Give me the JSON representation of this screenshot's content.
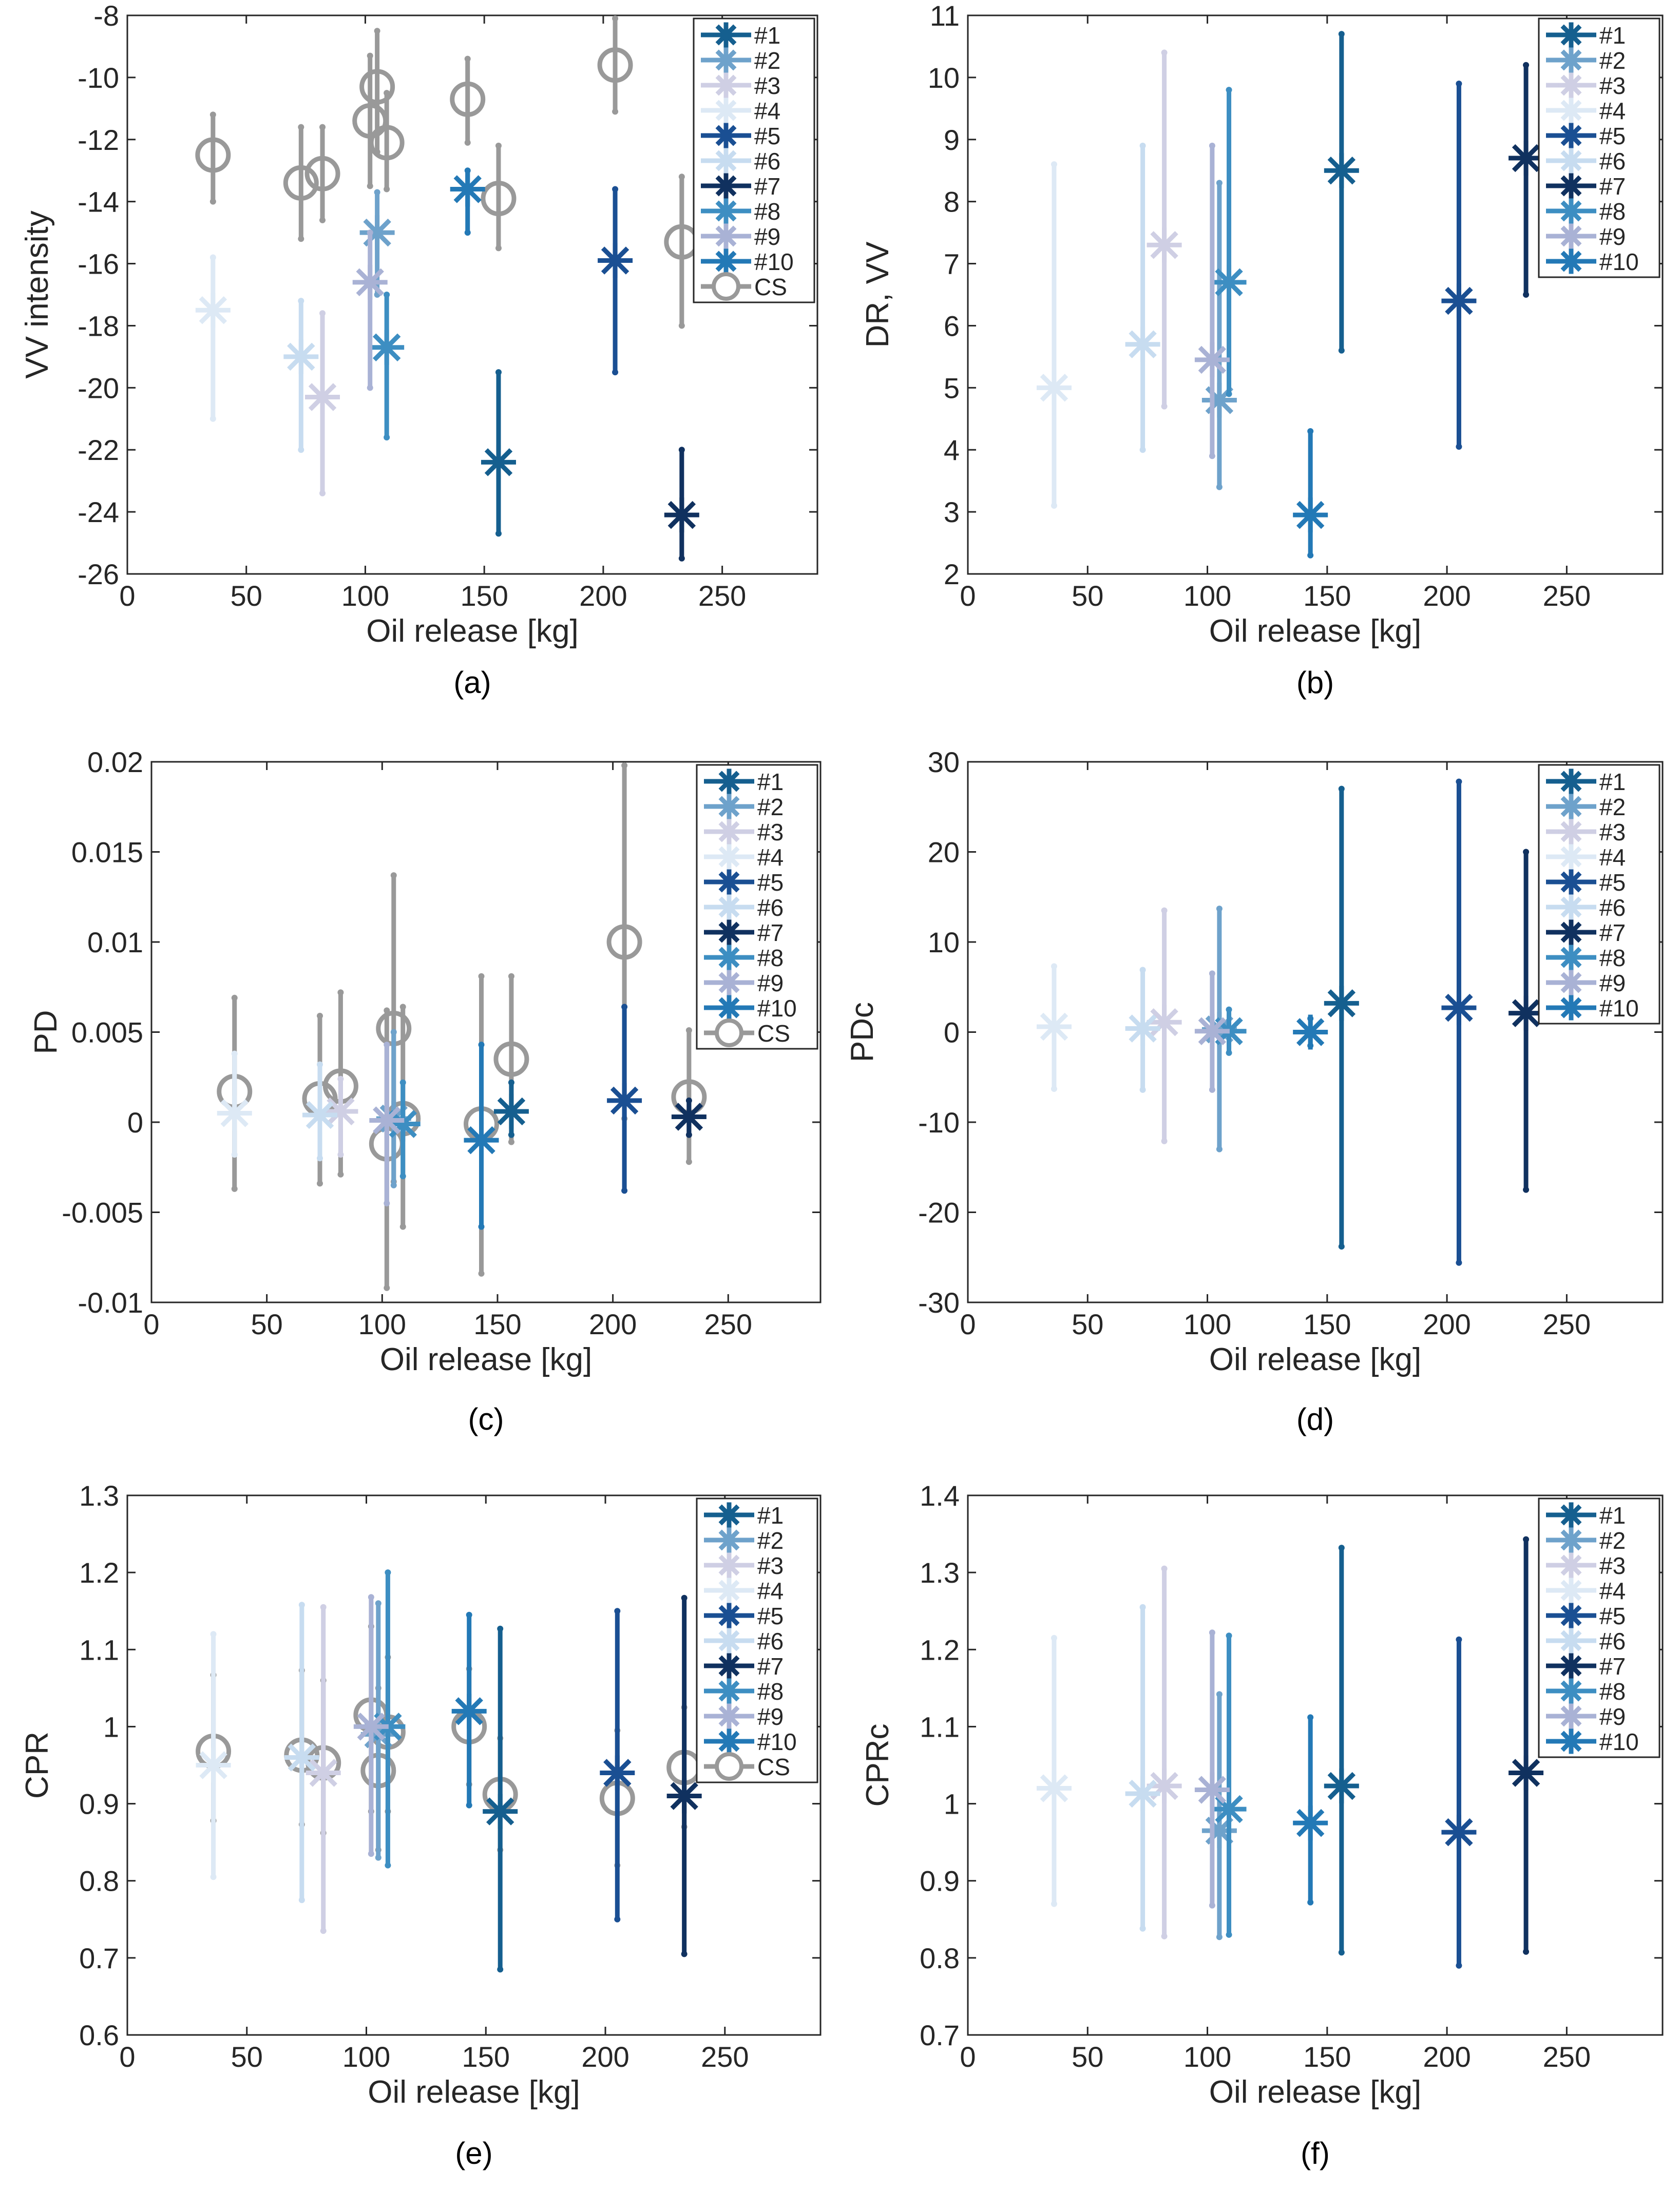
{
  "figure": {
    "colors": {
      "#1": "#155f8f",
      "#2": "#6ea2cb",
      "#3": "#cfcfe4",
      "#4": "#dde9f5",
      "#5": "#1a4f93",
      "#6": "#c7dcf0",
      "#7": "#10315f",
      "#8": "#3d8ec2",
      "#9": "#a9b2d5",
      "#10": "#2379b6",
      "CS": "#999999"
    }
  },
  "chart_data": [
    {
      "panel": "a",
      "caption": "(a)",
      "type": "errorbar-scatter",
      "title": "",
      "xlabel": "Oil release [kg]",
      "ylabel": "VV intensity",
      "xlim": [
        0,
        290
      ],
      "xticks": [
        0,
        50,
        100,
        150,
        200,
        250
      ],
      "ylim": [
        -26,
        -8
      ],
      "yticks": [
        -26,
        -24,
        -22,
        -20,
        -18,
        -16,
        -14,
        -12,
        -10,
        -8
      ],
      "ytick_labels": [
        "-26",
        "-24",
        "-22",
        "-20",
        "-18",
        "-16",
        "-14",
        "-12",
        "-10",
        "-8"
      ],
      "legend": [
        "#1",
        "#2",
        "#3",
        "#4",
        "#5",
        "#6",
        "#7",
        "#8",
        "#9",
        "#10",
        "CS"
      ],
      "series": [
        {
          "name": "#1",
          "x": 156,
          "y": -22.4,
          "lo": -24.7,
          "hi": -19.5
        },
        {
          "name": "#2",
          "x": 105,
          "y": -15.0,
          "lo": -17.0,
          "hi": -13.7
        },
        {
          "name": "#3",
          "x": 82,
          "y": -20.3,
          "lo": -23.4,
          "hi": -17.6
        },
        {
          "name": "#4",
          "x": 36,
          "y": -17.5,
          "lo": -21.0,
          "hi": -15.8
        },
        {
          "name": "#5",
          "x": 205,
          "y": -15.9,
          "lo": -19.5,
          "hi": -13.6
        },
        {
          "name": "#6",
          "x": 73,
          "y": -19.0,
          "lo": -22.0,
          "hi": -17.2
        },
        {
          "name": "#7",
          "x": 233,
          "y": -24.1,
          "lo": -25.5,
          "hi": -22.0
        },
        {
          "name": "#8",
          "x": 109,
          "y": -18.7,
          "lo": -21.6,
          "hi": -17.0
        },
        {
          "name": "#9",
          "x": 102,
          "y": -16.6,
          "lo": -20.0,
          "hi": -15.0
        },
        {
          "name": "#10",
          "x": 143,
          "y": -13.6,
          "lo": -15.0,
          "hi": -13.0
        },
        {
          "name": "CS",
          "points": [
            {
              "x": 36,
              "y": -12.5,
              "lo": -14.0,
              "hi": -11.2
            },
            {
              "x": 73,
              "y": -13.4,
              "lo": -15.2,
              "hi": -11.6
            },
            {
              "x": 82,
              "y": -13.1,
              "lo": -14.6,
              "hi": -11.6
            },
            {
              "x": 102,
              "y": -11.4,
              "lo": -13.5,
              "hi": -9.3
            },
            {
              "x": 105,
              "y": -10.3,
              "lo": -12.4,
              "hi": -8.5
            },
            {
              "x": 109,
              "y": -12.1,
              "lo": -13.6,
              "hi": -10.5
            },
            {
              "x": 143,
              "y": -10.7,
              "lo": -12.1,
              "hi": -9.4
            },
            {
              "x": 156,
              "y": -13.9,
              "lo": -15.5,
              "hi": -12.2
            },
            {
              "x": 205,
              "y": -9.6,
              "lo": -11.1,
              "hi": -8.1
            },
            {
              "x": 233,
              "y": -15.3,
              "lo": -18.0,
              "hi": -13.2
            }
          ]
        }
      ]
    },
    {
      "panel": "b",
      "caption": "(b)",
      "type": "errorbar-scatter",
      "title": "",
      "xlabel": "Oil release [kg]",
      "ylabel": "DR, VV",
      "xlim": [
        0,
        290
      ],
      "xticks": [
        0,
        50,
        100,
        150,
        200,
        250
      ],
      "ylim": [
        2,
        11
      ],
      "yticks": [
        2,
        3,
        4,
        5,
        6,
        7,
        8,
        9,
        10,
        11
      ],
      "ytick_labels": [
        "2",
        "3",
        "4",
        "5",
        "6",
        "7",
        "8",
        "9",
        "10",
        "11"
      ],
      "legend": [
        "#1",
        "#2",
        "#3",
        "#4",
        "#5",
        "#6",
        "#7",
        "#8",
        "#9",
        "#10"
      ],
      "series": [
        {
          "name": "#1",
          "x": 156,
          "y": 8.5,
          "lo": 5.6,
          "hi": 10.7
        },
        {
          "name": "#2",
          "x": 105,
          "y": 4.8,
          "lo": 3.4,
          "hi": 8.3
        },
        {
          "name": "#3",
          "x": 82,
          "y": 7.3,
          "lo": 4.7,
          "hi": 10.4
        },
        {
          "name": "#4",
          "x": 36,
          "y": 5.0,
          "lo": 3.1,
          "hi": 8.6
        },
        {
          "name": "#5",
          "x": 205,
          "y": 6.4,
          "lo": 4.05,
          "hi": 9.9
        },
        {
          "name": "#6",
          "x": 73,
          "y": 5.7,
          "lo": 4.0,
          "hi": 8.9
        },
        {
          "name": "#7",
          "x": 233,
          "y": 8.7,
          "lo": 6.5,
          "hi": 10.2
        },
        {
          "name": "#8",
          "x": 109,
          "y": 6.7,
          "lo": 4.9,
          "hi": 9.8
        },
        {
          "name": "#9",
          "x": 102,
          "y": 5.45,
          "lo": 3.9,
          "hi": 8.9
        },
        {
          "name": "#10",
          "x": 143,
          "y": 2.95,
          "lo": 2.3,
          "hi": 4.3
        }
      ]
    },
    {
      "panel": "c",
      "caption": "(c)",
      "type": "errorbar-scatter",
      "title": "",
      "xlabel": "Oil release [kg]",
      "ylabel": "PD",
      "xlim": [
        0,
        290
      ],
      "xticks": [
        0,
        50,
        100,
        150,
        200,
        250
      ],
      "ylim": [
        -0.01,
        0.02
      ],
      "yticks": [
        -0.01,
        -0.005,
        0,
        0.005,
        0.01,
        0.015,
        0.02
      ],
      "ytick_labels": [
        "-0.01",
        "-0.005",
        "0",
        "0.005",
        "0.01",
        "0.015",
        "0.02"
      ],
      "legend": [
        "#1",
        "#2",
        "#3",
        "#4",
        "#5",
        "#6",
        "#7",
        "#8",
        "#9",
        "#10",
        "CS"
      ],
      "series": [
        {
          "name": "#1",
          "x": 156,
          "y": 0.0006,
          "lo": -0.0007,
          "hi": 0.0022
        },
        {
          "name": "#2",
          "x": 105,
          "y": 0.0002,
          "lo": -0.0035,
          "hi": 0.005
        },
        {
          "name": "#3",
          "x": 82,
          "y": 0.0006,
          "lo": -0.0018,
          "hi": 0.0024
        },
        {
          "name": "#4",
          "x": 36,
          "y": 0.0005,
          "lo": -0.0018,
          "hi": 0.0038
        },
        {
          "name": "#5",
          "x": 205,
          "y": 0.0012,
          "lo": -0.0038,
          "hi": 0.0064
        },
        {
          "name": "#6",
          "x": 73,
          "y": 0.0004,
          "lo": -0.002,
          "hi": 0.0032
        },
        {
          "name": "#7",
          "x": 233,
          "y": 0.0003,
          "lo": -0.0007,
          "hi": 0.0012
        },
        {
          "name": "#8",
          "x": 109,
          "y": -0.0001,
          "lo": -0.003,
          "hi": 0.0022
        },
        {
          "name": "#9",
          "x": 102,
          "y": 0.0001,
          "lo": -0.0045,
          "hi": 0.0043
        },
        {
          "name": "#10",
          "x": 143,
          "y": -0.001,
          "lo": -0.0058,
          "hi": 0.0043
        },
        {
          "name": "CS",
          "points": [
            {
              "x": 36,
              "y": 0.0017,
              "lo": -0.0037,
              "hi": 0.0069
            },
            {
              "x": 73,
              "y": 0.0013,
              "lo": -0.0034,
              "hi": 0.0059
            },
            {
              "x": 82,
              "y": 0.002,
              "lo": -0.0029,
              "hi": 0.0072
            },
            {
              "x": 102,
              "y": -0.0012,
              "lo": -0.0092,
              "hi": 0.0062
            },
            {
              "x": 105,
              "y": 0.0052,
              "lo": -0.0033,
              "hi": 0.0137
            },
            {
              "x": 109,
              "y": 0.0002,
              "lo": -0.0058,
              "hi": 0.0064
            },
            {
              "x": 143,
              "y": -0.0001,
              "lo": -0.0084,
              "hi": 0.0081
            },
            {
              "x": 156,
              "y": 0.0035,
              "lo": -0.0011,
              "hi": 0.0081
            },
            {
              "x": 205,
              "y": 0.01,
              "lo": 0.0002,
              "hi": 0.0198
            },
            {
              "x": 233,
              "y": 0.0014,
              "lo": -0.0022,
              "hi": 0.0051
            }
          ]
        }
      ]
    },
    {
      "panel": "d",
      "caption": "(d)",
      "type": "errorbar-scatter",
      "title": "",
      "xlabel": "Oil release [kg]",
      "ylabel": "PDc",
      "xlim": [
        0,
        290
      ],
      "xticks": [
        0,
        50,
        100,
        150,
        200,
        250
      ],
      "ylim": [
        -30,
        30
      ],
      "yticks": [
        -30,
        -20,
        -10,
        0,
        10,
        20,
        30
      ],
      "ytick_labels": [
        "-30",
        "-20",
        "-10",
        "0",
        "10",
        "20",
        "30"
      ],
      "legend": [
        "#1",
        "#2",
        "#3",
        "#4",
        "#5",
        "#6",
        "#7",
        "#8",
        "#9",
        "#10"
      ],
      "series": [
        {
          "name": "#1",
          "x": 156,
          "y": 3.2,
          "lo": -23.8,
          "hi": 27.0
        },
        {
          "name": "#2",
          "x": 105,
          "y": 0.3,
          "lo": -13.0,
          "hi": 13.7
        },
        {
          "name": "#3",
          "x": 82,
          "y": 1.1,
          "lo": -12.1,
          "hi": 13.5
        },
        {
          "name": "#4",
          "x": 36,
          "y": 0.6,
          "lo": -6.3,
          "hi": 7.3
        },
        {
          "name": "#5",
          "x": 205,
          "y": 2.7,
          "lo": -25.6,
          "hi": 27.8
        },
        {
          "name": "#6",
          "x": 73,
          "y": 0.4,
          "lo": -6.4,
          "hi": 6.9
        },
        {
          "name": "#7",
          "x": 233,
          "y": 2.1,
          "lo": -17.5,
          "hi": 20.0
        },
        {
          "name": "#8",
          "x": 109,
          "y": 0.1,
          "lo": -2.3,
          "hi": 2.5
        },
        {
          "name": "#9",
          "x": 102,
          "y": 0.1,
          "lo": -6.4,
          "hi": 6.5
        },
        {
          "name": "#10",
          "x": 143,
          "y": 0.0,
          "lo": -1.5,
          "hi": 1.5
        }
      ]
    },
    {
      "panel": "e",
      "caption": "(e)",
      "type": "errorbar-scatter",
      "title": "",
      "xlabel": "Oil release [kg]",
      "ylabel": "CPR",
      "xlim": [
        0,
        290
      ],
      "xticks": [
        0,
        50,
        100,
        150,
        200,
        250
      ],
      "ylim": [
        0.6,
        1.3
      ],
      "yticks": [
        0.6,
        0.7,
        0.8,
        0.9,
        1,
        1.1,
        1.2,
        1.3
      ],
      "ytick_labels": [
        "0.6",
        "0.7",
        "0.8",
        "0.9",
        "1",
        "1.1",
        "1.2",
        "1.3"
      ],
      "legend": [
        "#1",
        "#2",
        "#3",
        "#4",
        "#5",
        "#6",
        "#7",
        "#8",
        "#9",
        "#10",
        "CS"
      ],
      "series": [
        {
          "name": "#1",
          "x": 156,
          "y": 0.89,
          "lo": 0.685,
          "hi": 1.127
        },
        {
          "name": "#2",
          "x": 105,
          "y": 0.99,
          "lo": 0.83,
          "hi": 1.16
        },
        {
          "name": "#3",
          "x": 82,
          "y": 0.94,
          "lo": 0.735,
          "hi": 1.155
        },
        {
          "name": "#4",
          "x": 36,
          "y": 0.95,
          "lo": 0.805,
          "hi": 1.12
        },
        {
          "name": "#5",
          "x": 205,
          "y": 0.94,
          "lo": 0.75,
          "hi": 1.15
        },
        {
          "name": "#6",
          "x": 73,
          "y": 0.96,
          "lo": 0.775,
          "hi": 1.158
        },
        {
          "name": "#7",
          "x": 233,
          "y": 0.91,
          "lo": 0.705,
          "hi": 1.167
        },
        {
          "name": "#8",
          "x": 109,
          "y": 1.0,
          "lo": 0.82,
          "hi": 1.2
        },
        {
          "name": "#9",
          "x": 102,
          "y": 1.0,
          "lo": 0.835,
          "hi": 1.168
        },
        {
          "name": "#10",
          "x": 143,
          "y": 1.02,
          "lo": 0.898,
          "hi": 1.145
        },
        {
          "name": "CS",
          "points": [
            {
              "x": 36,
              "y": 0.968,
              "lo": 0.878,
              "hi": 1.067
            },
            {
              "x": 73,
              "y": 0.963,
              "lo": 0.873,
              "hi": 1.073
            },
            {
              "x": 82,
              "y": 0.953,
              "lo": 0.862,
              "hi": 1.06
            },
            {
              "x": 102,
              "y": 1.015,
              "lo": 0.89,
              "hi": 1.13
            },
            {
              "x": 105,
              "y": 0.943,
              "lo": 0.84,
              "hi": 1.05
            },
            {
              "x": 109,
              "y": 0.993,
              "lo": 0.89,
              "hi": 1.09
            },
            {
              "x": 143,
              "y": 1.0,
              "lo": 0.925,
              "hi": 1.075
            },
            {
              "x": 156,
              "y": 0.912,
              "lo": 0.84,
              "hi": 0.985
            },
            {
              "x": 205,
              "y": 0.907,
              "lo": 0.82,
              "hi": 0.995
            },
            {
              "x": 233,
              "y": 0.947,
              "lo": 0.87,
              "hi": 1.025
            }
          ]
        }
      ]
    },
    {
      "panel": "f",
      "caption": "(f)",
      "type": "errorbar-scatter",
      "title": "",
      "xlabel": "Oil release [kg]",
      "ylabel": "CPRc",
      "xlim": [
        0,
        290
      ],
      "xticks": [
        0,
        50,
        100,
        150,
        200,
        250
      ],
      "ylim": [
        0.7,
        1.4
      ],
      "yticks": [
        0.7,
        0.8,
        0.9,
        1,
        1.1,
        1.2,
        1.3,
        1.4
      ],
      "ytick_labels": [
        "0.7",
        "0.8",
        "0.9",
        "1",
        "1.1",
        "1.2",
        "1.3",
        "1.4"
      ],
      "legend": [
        "#1",
        "#2",
        "#3",
        "#4",
        "#5",
        "#6",
        "#7",
        "#8",
        "#9",
        "#10"
      ],
      "series": [
        {
          "name": "#1",
          "x": 156,
          "y": 1.023,
          "lo": 0.807,
          "hi": 1.332
        },
        {
          "name": "#2",
          "x": 105,
          "y": 0.965,
          "lo": 0.827,
          "hi": 1.142
        },
        {
          "name": "#3",
          "x": 82,
          "y": 1.023,
          "lo": 0.828,
          "hi": 1.305
        },
        {
          "name": "#4",
          "x": 36,
          "y": 1.02,
          "lo": 0.87,
          "hi": 1.215
        },
        {
          "name": "#5",
          "x": 205,
          "y": 0.963,
          "lo": 0.79,
          "hi": 1.213
        },
        {
          "name": "#6",
          "x": 73,
          "y": 1.013,
          "lo": 0.838,
          "hi": 1.255
        },
        {
          "name": "#7",
          "x": 233,
          "y": 1.04,
          "lo": 0.808,
          "hi": 1.343
        },
        {
          "name": "#8",
          "x": 109,
          "y": 0.993,
          "lo": 0.83,
          "hi": 1.218
        },
        {
          "name": "#9",
          "x": 102,
          "y": 1.018,
          "lo": 0.868,
          "hi": 1.222
        },
        {
          "name": "#10",
          "x": 143,
          "y": 0.975,
          "lo": 0.872,
          "hi": 1.112
        }
      ]
    }
  ]
}
